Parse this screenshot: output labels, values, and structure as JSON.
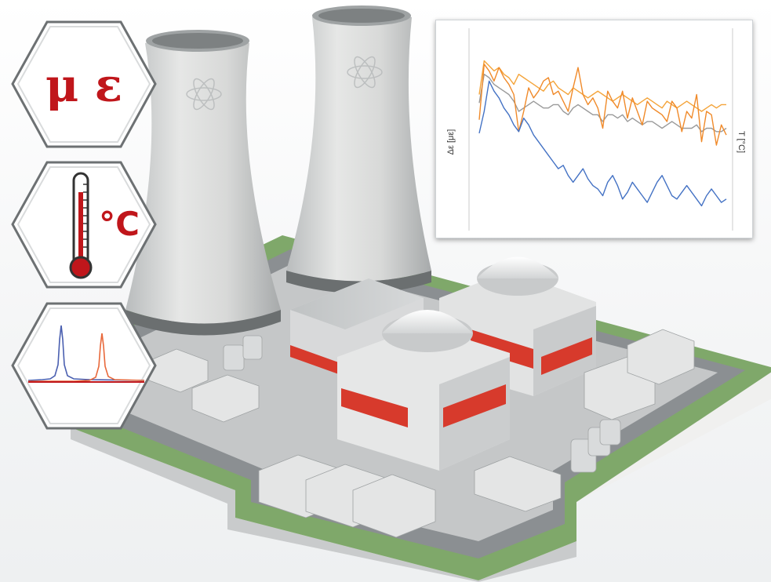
{
  "badges": {
    "strain": {
      "symbol": "μ ε",
      "color": "#c0161b"
    },
    "temperature": {
      "symbol": "°C",
      "color": "#c0161b"
    },
    "spectrum": {
      "icon": "spectrum-peaks-icon"
    }
  },
  "chart_data": {
    "type": "line",
    "title": "",
    "ylabel_left": "Δε [με]",
    "ylabel_right": "T [°C]",
    "ylim_left": [
      0,
      100
    ],
    "ylim_right": [
      0,
      100
    ],
    "x": [
      0,
      2,
      4,
      6,
      8,
      10,
      12,
      14,
      16,
      18,
      20,
      22,
      24,
      26,
      28,
      30,
      32,
      34,
      36,
      38,
      40,
      42,
      44,
      46,
      48,
      50,
      52,
      54,
      56,
      58,
      60,
      62,
      64,
      66,
      68,
      70,
      72,
      74,
      76,
      78,
      80,
      82,
      84,
      86,
      88,
      90,
      92,
      94,
      96,
      98,
      100
    ],
    "series": [
      {
        "axis": "left",
        "color": "#4472c4",
        "values": [
          47,
          60,
          78,
          72,
          68,
          62,
          58,
          52,
          48,
          56,
          52,
          46,
          42,
          38,
          34,
          30,
          26,
          28,
          22,
          18,
          22,
          26,
          20,
          16,
          14,
          10,
          18,
          22,
          16,
          8,
          12,
          18,
          14,
          10,
          6,
          12,
          18,
          22,
          16,
          10,
          8,
          12,
          16,
          12,
          8,
          4,
          10,
          14,
          10,
          6,
          8
        ]
      },
      {
        "axis": "right",
        "color": "#f4a43a",
        "values": [
          70,
          90,
          87,
          84,
          86,
          82,
          80,
          76,
          82,
          80,
          78,
          76,
          74,
          72,
          76,
          78,
          74,
          72,
          70,
          74,
          72,
          70,
          68,
          70,
          72,
          70,
          68,
          66,
          68,
          70,
          68,
          66,
          64,
          66,
          68,
          66,
          64,
          62,
          66,
          64,
          62,
          64,
          66,
          64,
          62,
          60,
          62,
          64,
          62,
          64,
          64
        ]
      },
      {
        "axis": "right",
        "color": "#f08a2a",
        "values": [
          55,
          88,
          84,
          78,
          86,
          80,
          76,
          70,
          48,
          60,
          74,
          68,
          72,
          78,
          80,
          70,
          72,
          66,
          60,
          74,
          86,
          70,
          64,
          68,
          62,
          50,
          72,
          66,
          62,
          72,
          56,
          68,
          60,
          52,
          66,
          62,
          60,
          58,
          54,
          66,
          62,
          48,
          60,
          56,
          70,
          42,
          60,
          58,
          40,
          52,
          46
        ]
      },
      {
        "axis": "right",
        "color": "#9a9a9a",
        "values": [
          65,
          82,
          80,
          76,
          74,
          72,
          70,
          66,
          60,
          62,
          64,
          66,
          64,
          62,
          62,
          64,
          64,
          60,
          58,
          62,
          64,
          62,
          60,
          58,
          58,
          54,
          58,
          58,
          56,
          58,
          54,
          56,
          54,
          52,
          54,
          54,
          52,
          50,
          52,
          54,
          52,
          50,
          50,
          50,
          52,
          48,
          50,
          50,
          48,
          48,
          50
        ]
      }
    ]
  },
  "scene": {
    "description_icons": [
      "cooling-tower-icon",
      "reactor-dome-icon"
    ],
    "accent_red": "#d73a2c",
    "ground_green": "#7fa86a",
    "road_gray": "#8a8d90",
    "concrete": "#d9dad9"
  }
}
